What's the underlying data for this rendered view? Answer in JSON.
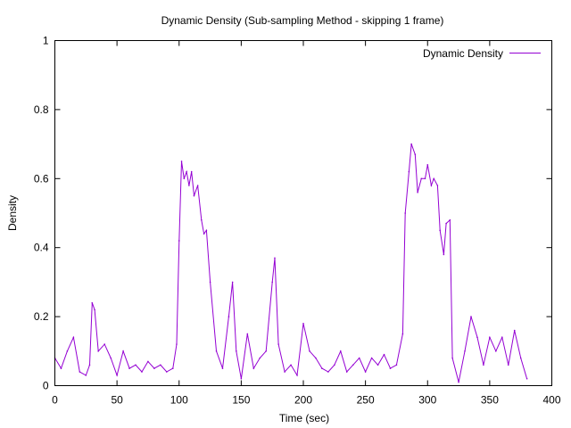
{
  "chart_data": {
    "type": "line",
    "title": "Dynamic Density (Sub-sampling Method - skipping 1 frame)",
    "xlabel": "Time (sec)",
    "ylabel": "Density",
    "xlim": [
      0,
      400
    ],
    "ylim": [
      0,
      1
    ],
    "x_ticks": [
      0,
      50,
      100,
      150,
      200,
      250,
      300,
      350,
      400
    ],
    "y_ticks": [
      0,
      0.2,
      0.4,
      0.6,
      0.8,
      1
    ],
    "grid": false,
    "legend_position": "top-right",
    "series": [
      {
        "name": "Dynamic Density",
        "color": "#9400d3",
        "x": [
          0,
          5,
          10,
          15,
          20,
          25,
          28,
          30,
          32,
          35,
          40,
          45,
          50,
          55,
          60,
          65,
          70,
          75,
          80,
          85,
          90,
          95,
          98,
          100,
          102,
          104,
          106,
          108,
          110,
          112,
          115,
          118,
          120,
          122,
          125,
          130,
          135,
          140,
          143,
          146,
          150,
          155,
          160,
          165,
          170,
          175,
          177,
          180,
          185,
          190,
          195,
          200,
          205,
          210,
          215,
          220,
          225,
          230,
          235,
          240,
          245,
          250,
          255,
          260,
          265,
          270,
          275,
          280,
          282,
          285,
          287,
          290,
          292,
          295,
          298,
          300,
          303,
          305,
          308,
          310,
          313,
          315,
          318,
          320,
          325,
          330,
          335,
          340,
          345,
          350,
          355,
          360,
          365,
          370,
          375,
          380
        ],
        "values": [
          0.08,
          0.05,
          0.1,
          0.14,
          0.04,
          0.03,
          0.06,
          0.24,
          0.22,
          0.1,
          0.12,
          0.08,
          0.03,
          0.1,
          0.05,
          0.06,
          0.04,
          0.07,
          0.05,
          0.06,
          0.04,
          0.05,
          0.12,
          0.42,
          0.65,
          0.6,
          0.62,
          0.58,
          0.62,
          0.55,
          0.58,
          0.48,
          0.44,
          0.45,
          0.3,
          0.1,
          0.05,
          0.2,
          0.3,
          0.1,
          0.02,
          0.15,
          0.05,
          0.08,
          0.1,
          0.3,
          0.37,
          0.12,
          0.04,
          0.06,
          0.03,
          0.18,
          0.1,
          0.08,
          0.05,
          0.04,
          0.06,
          0.1,
          0.04,
          0.06,
          0.08,
          0.04,
          0.08,
          0.06,
          0.09,
          0.05,
          0.06,
          0.15,
          0.5,
          0.62,
          0.7,
          0.67,
          0.56,
          0.6,
          0.6,
          0.64,
          0.58,
          0.6,
          0.58,
          0.45,
          0.38,
          0.47,
          0.48,
          0.08,
          0.01,
          0.1,
          0.2,
          0.14,
          0.06,
          0.14,
          0.1,
          0.14,
          0.06,
          0.16,
          0.08,
          0.02
        ]
      }
    ]
  }
}
